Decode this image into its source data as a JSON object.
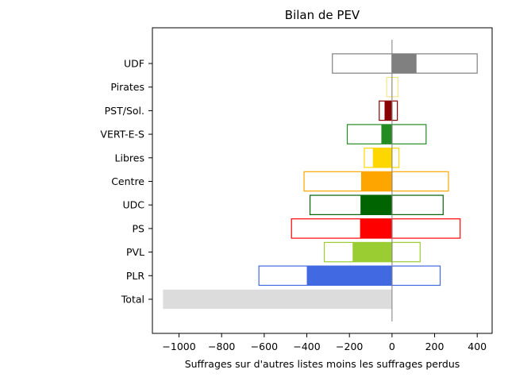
{
  "chart_data": {
    "type": "bar",
    "orientation": "horizontal",
    "title": "Bilan de PEV",
    "xlabel": "Suffrages sur d'autres listes moins les suffrages perdus",
    "ylabel": "",
    "xlim": [
      -1125,
      470
    ],
    "xticks": [
      -1000,
      -800,
      -600,
      -400,
      -200,
      0,
      200,
      400
    ],
    "xtick_labels": [
      "−1000",
      "−800",
      "−600",
      "−400",
      "−200",
      "0",
      "200",
      "400"
    ],
    "grid": false,
    "categories": [
      "Total",
      "PLR",
      "PVL",
      "PS",
      "UDC",
      "Centre",
      "Libres",
      "VERT-E-S",
      "PST/Sol.",
      "Pirates",
      "UDF"
    ],
    "series": [
      {
        "role": "suffrages_perdus_outline",
        "values": [
          null,
          -625,
          -318,
          -472,
          -385,
          -413,
          -130,
          -210,
          -60,
          -25,
          -280
        ]
      },
      {
        "role": "suffrages_autres_listes_outline",
        "values": [
          null,
          226,
          132,
          320,
          240,
          265,
          32,
          160,
          25,
          28,
          400
        ]
      },
      {
        "role": "bilan_net_filled",
        "values": [
          -1075,
          -400,
          -185,
          -150,
          -148,
          -145,
          -90,
          -50,
          -35,
          0,
          115
        ]
      }
    ],
    "colors": [
      "#dcdcdc",
      "#4169e1",
      "#9acd32",
      "#ff0000",
      "#006400",
      "#ffa500",
      "#ffd700",
      "#228b22",
      "#8b0000",
      "#f0e68c",
      "#808080"
    ]
  }
}
